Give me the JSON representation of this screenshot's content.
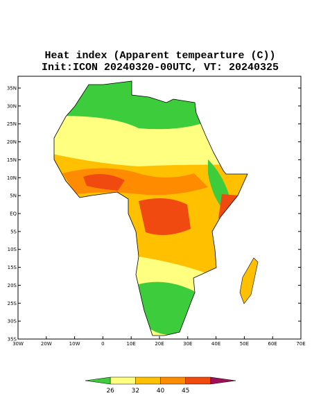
{
  "title": "Heat index (Apparent tempearture (C))",
  "subtitle": "Init:ICON 20240320-00UTC, VT: 20240325",
  "map": {
    "lat_ticks": [
      "35N",
      "30N",
      "25N",
      "20N",
      "15N",
      "10N",
      "5N",
      "EQ",
      "5S",
      "10S",
      "15S",
      "20S",
      "25S",
      "30S",
      "35S"
    ],
    "lon_ticks": [
      "30W",
      "20W",
      "10W",
      "0",
      "10E",
      "20E",
      "30E",
      "40E",
      "50E",
      "60E",
      "70E"
    ]
  },
  "colorbar": {
    "colors": [
      "#3ccc3c",
      "#ffff80",
      "#ffc000",
      "#ff8c00",
      "#f04a10",
      "#a0105a"
    ],
    "labels": [
      "26",
      "32",
      "40",
      "45"
    ]
  }
}
